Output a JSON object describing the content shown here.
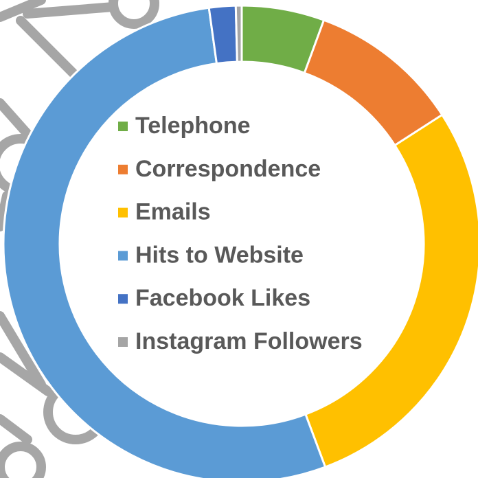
{
  "chart_data": {
    "type": "doughnut",
    "categories": [
      "Telephone",
      "Correspondence",
      "Emails",
      "Hits to Website",
      "Facebook Likes",
      "Instagram Followers"
    ],
    "values": [
      5.6,
      10.3,
      28.4,
      53.5,
      1.8,
      0.4
    ],
    "colors": [
      "#70ad47",
      "#ed7d31",
      "#ffc000",
      "#5b9bd5",
      "#4472c4",
      "#a5a5a5"
    ],
    "legend": "center"
  }
}
